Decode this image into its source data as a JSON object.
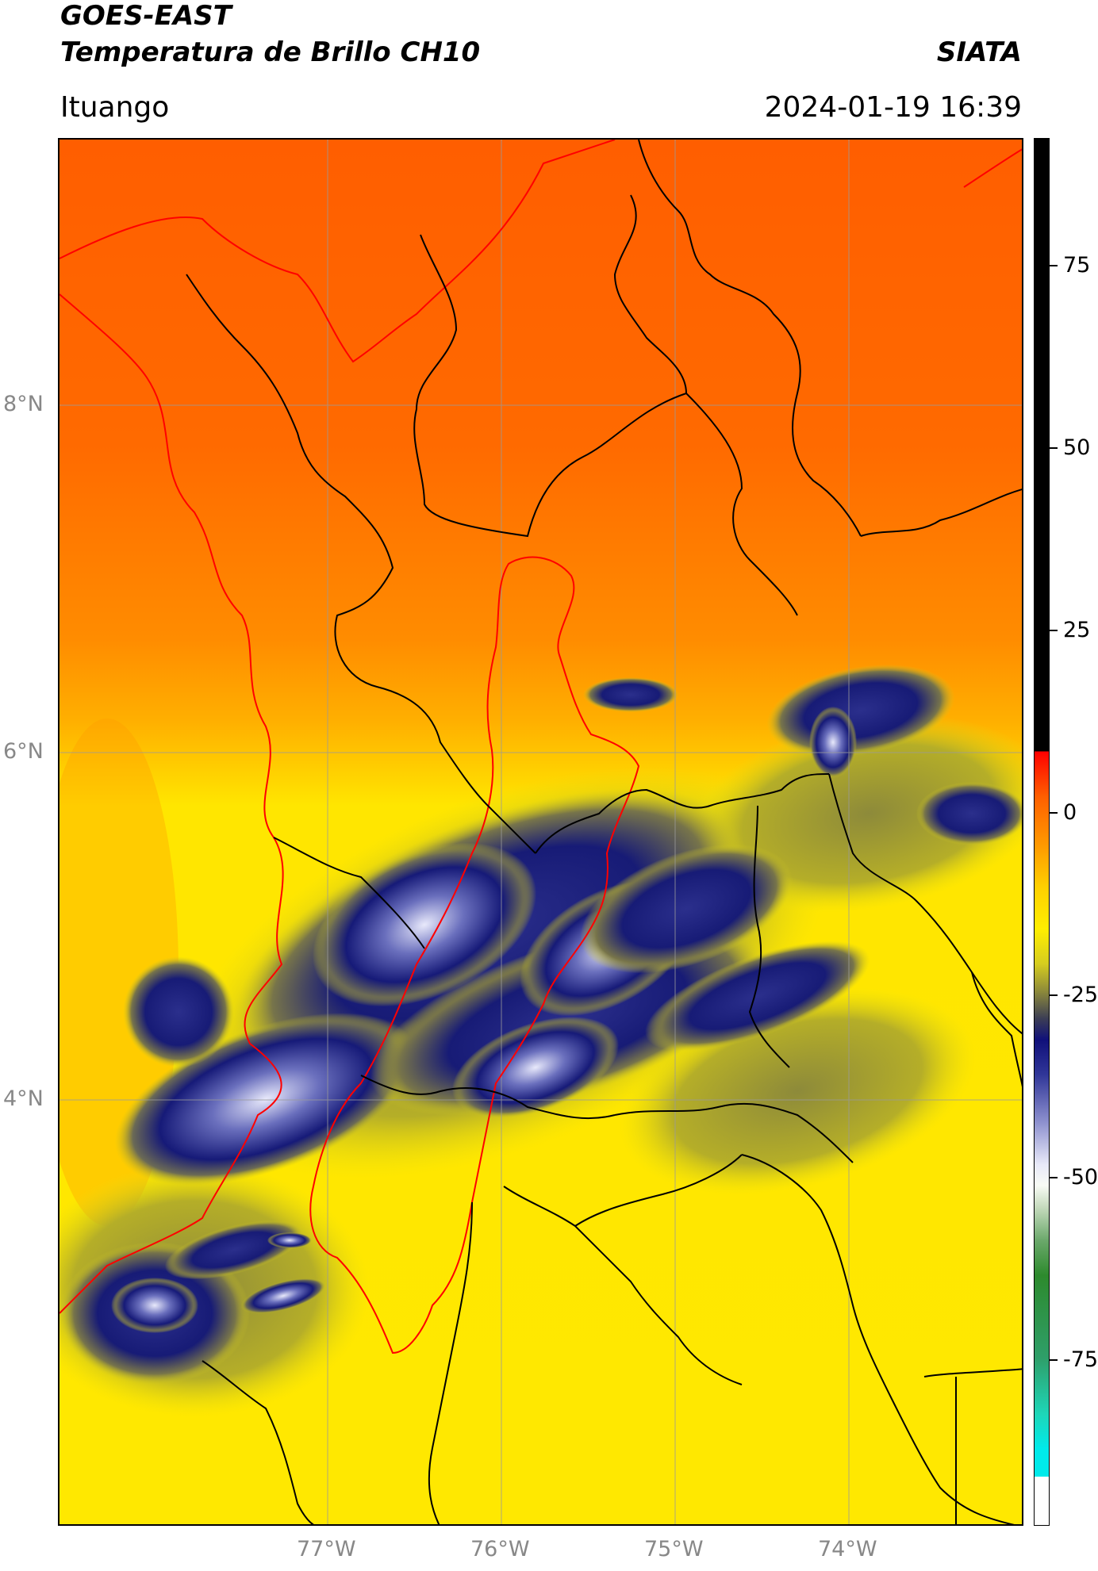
{
  "header": {
    "satellite": "GOES-EAST",
    "product": "Temperatura de Brillo CH10",
    "agency": "SIATA",
    "region": "Ituango",
    "datetime": "2024-01-19 16:39"
  },
  "axes": {
    "lat_labels": [
      "8°N",
      "6°N",
      "4°N"
    ],
    "lon_labels": [
      "77°W",
      "76°W",
      "75°W",
      "74°W"
    ]
  },
  "colorbar": {
    "tick_labels": [
      "75",
      "50",
      "25",
      "0",
      "-25",
      "-50",
      "-75"
    ],
    "colors": {
      "black": "#000000",
      "red": "#ff0000",
      "orange": "#ff8000",
      "yellow": "#ffee00",
      "olive": "#8f8f35",
      "navy": "#10107a",
      "white": "#f2f2ff",
      "green": "#2d8a2d",
      "cyan": "#00e0e0"
    }
  },
  "map_colors": {
    "warm": "#ff6400",
    "mid": "#ff9a00",
    "cool": "#ffe000",
    "cloud_edge": "#b6b22a",
    "cloud": "#1a1f7a",
    "cloud_top": "#e6e8fa",
    "borders": "#000000",
    "ituango_outline": "#ff0000"
  }
}
